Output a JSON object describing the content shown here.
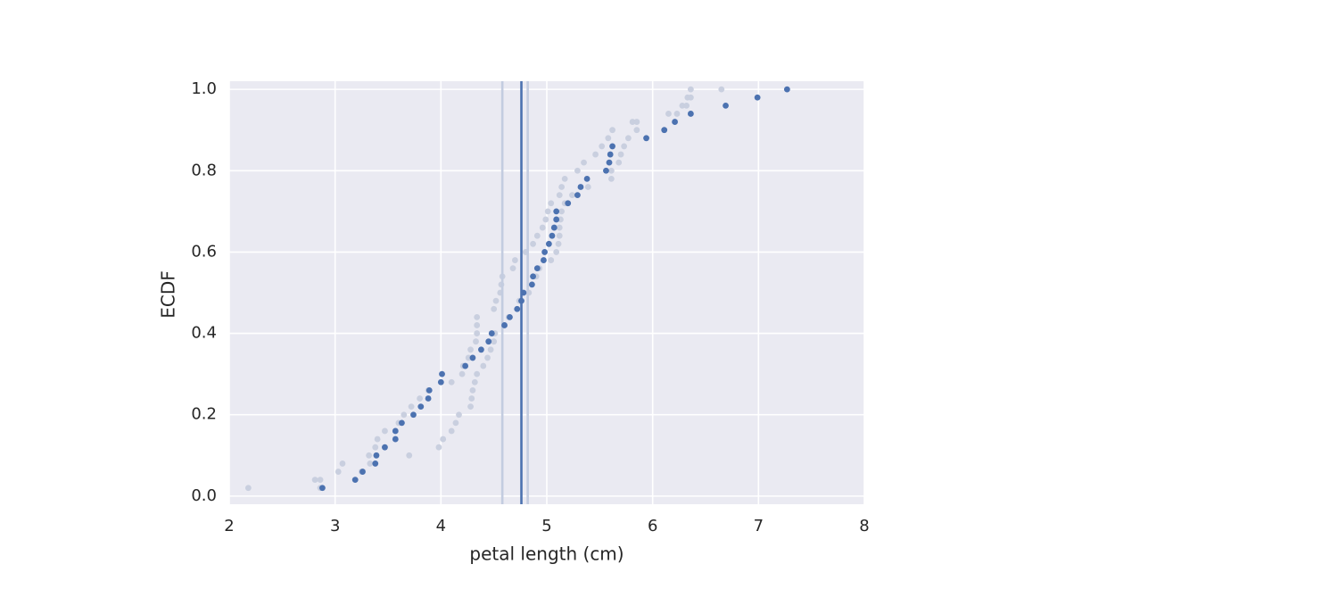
{
  "chart_data": {
    "type": "scatter",
    "xlabel": "petal length (cm)",
    "ylabel": "ECDF",
    "xlim": [
      2,
      8
    ],
    "ylim": [
      -0.02,
      1.02
    ],
    "xticks": [
      2,
      3,
      4,
      5,
      6,
      7,
      8
    ],
    "yticks": [
      {
        "value": 0,
        "label": "0.0"
      },
      {
        "value": 0.2,
        "label": "0.2"
      },
      {
        "value": 0.4,
        "label": "0.4"
      },
      {
        "value": 0.6,
        "label": "0.6"
      },
      {
        "value": 0.8,
        "label": "0.8"
      },
      {
        "value": 1,
        "label": "1.0"
      }
    ],
    "grid": true,
    "vlines": [
      {
        "x": 4.58,
        "color": "#c3cce0"
      },
      {
        "x": 4.82,
        "color": "#c3cce0"
      },
      {
        "x": 4.76,
        "color": "#4c72b0"
      }
    ],
    "series": [
      {
        "color": "#c9cfdf",
        "x": [
          2.18,
          2.81,
          3.03,
          3.07,
          3.32,
          3.38,
          3.4,
          3.47,
          3.6,
          3.65,
          3.72,
          3.8,
          3.88,
          4.1,
          4.2,
          4.21,
          4.26,
          4.28,
          4.33,
          4.34,
          4.34,
          4.34,
          4.5,
          4.52,
          4.56,
          4.57,
          4.58,
          4.68,
          4.7,
          4.8,
          4.87,
          4.91,
          4.96,
          4.99,
          5.01,
          5.04,
          5.12,
          5.14,
          5.17,
          5.29,
          5.35,
          5.46,
          5.52,
          5.58,
          5.62,
          5.81,
          6.15,
          6.28,
          6.33,
          6.36
        ],
        "values": [
          0.02,
          0.04,
          0.06,
          0.08,
          0.1,
          0.12,
          0.14,
          0.16,
          0.18,
          0.2,
          0.22,
          0.24,
          0.26,
          0.28,
          0.3,
          0.32,
          0.34,
          0.36,
          0.38,
          0.4,
          0.42,
          0.44,
          0.46,
          0.48,
          0.5,
          0.52,
          0.54,
          0.56,
          0.58,
          0.6,
          0.62,
          0.64,
          0.66,
          0.68,
          0.7,
          0.72,
          0.74,
          0.76,
          0.78,
          0.8,
          0.82,
          0.84,
          0.86,
          0.88,
          0.9,
          0.92,
          0.94,
          0.96,
          0.98,
          1.0
        ]
      },
      {
        "color": "#c9cfdf",
        "x": [
          2.86,
          2.86,
          3.25,
          3.33,
          3.7,
          3.98,
          4.02,
          4.1,
          4.14,
          4.17,
          4.28,
          4.29,
          4.3,
          4.32,
          4.34,
          4.4,
          4.44,
          4.47,
          4.5,
          4.51,
          4.6,
          4.64,
          4.72,
          4.74,
          4.83,
          4.86,
          4.9,
          4.93,
          5.04,
          5.09,
          5.11,
          5.12,
          5.12,
          5.13,
          5.14,
          5.17,
          5.24,
          5.39,
          5.61,
          5.61,
          5.68,
          5.7,
          5.73,
          5.77,
          5.85,
          5.85,
          6.23,
          6.32,
          6.36,
          6.65
        ],
        "values": [
          0.02,
          0.04,
          0.06,
          0.08,
          0.1,
          0.12,
          0.14,
          0.16,
          0.18,
          0.2,
          0.22,
          0.24,
          0.26,
          0.28,
          0.3,
          0.32,
          0.34,
          0.36,
          0.38,
          0.4,
          0.42,
          0.44,
          0.46,
          0.48,
          0.5,
          0.52,
          0.54,
          0.56,
          0.58,
          0.6,
          0.62,
          0.64,
          0.66,
          0.68,
          0.7,
          0.72,
          0.74,
          0.76,
          0.78,
          0.8,
          0.82,
          0.84,
          0.86,
          0.88,
          0.9,
          0.92,
          0.94,
          0.96,
          0.98,
          1.0
        ]
      },
      {
        "color": "#4c72b0",
        "x": [
          2.88,
          3.19,
          3.26,
          3.38,
          3.39,
          3.47,
          3.57,
          3.57,
          3.63,
          3.74,
          3.81,
          3.88,
          3.89,
          4.0,
          4.01,
          4.23,
          4.3,
          4.38,
          4.45,
          4.48,
          4.6,
          4.65,
          4.72,
          4.76,
          4.78,
          4.86,
          4.87,
          4.91,
          4.97,
          4.98,
          5.02,
          5.05,
          5.07,
          5.09,
          5.09,
          5.2,
          5.29,
          5.32,
          5.38,
          5.56,
          5.59,
          5.6,
          5.62,
          5.94,
          6.11,
          6.21,
          6.36,
          6.69,
          6.99,
          7.27
        ],
        "values": [
          0.02,
          0.04,
          0.06,
          0.08,
          0.1,
          0.12,
          0.14,
          0.16,
          0.18,
          0.2,
          0.22,
          0.24,
          0.26,
          0.28,
          0.3,
          0.32,
          0.34,
          0.36,
          0.38,
          0.4,
          0.42,
          0.44,
          0.46,
          0.48,
          0.5,
          0.52,
          0.54,
          0.56,
          0.58,
          0.6,
          0.62,
          0.64,
          0.66,
          0.68,
          0.7,
          0.72,
          0.74,
          0.76,
          0.78,
          0.8,
          0.82,
          0.84,
          0.86,
          0.88,
          0.9,
          0.92,
          0.94,
          0.96,
          0.98,
          1.0
        ]
      }
    ]
  }
}
